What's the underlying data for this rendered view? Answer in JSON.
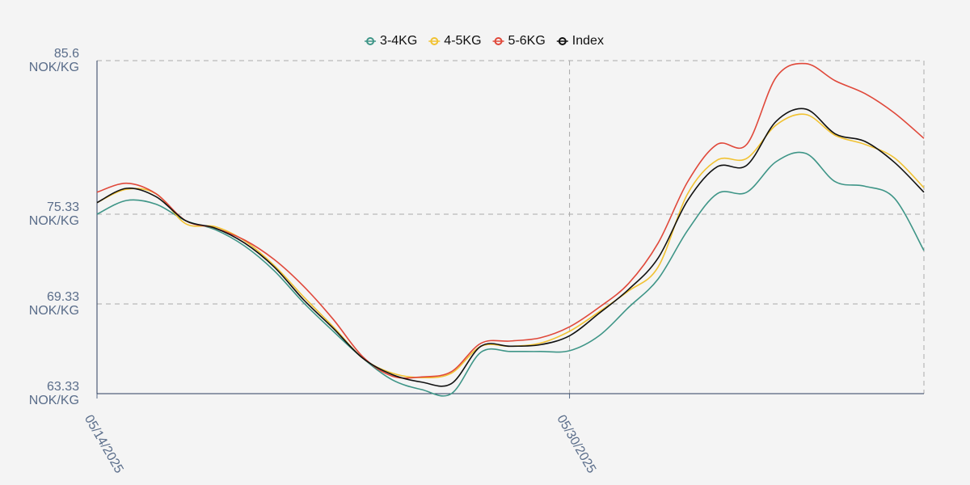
{
  "chart_data": {
    "type": "line",
    "x": [
      "05/14/2025",
      "05/15/2025",
      "05/16/2025",
      "05/17/2025",
      "05/18/2025",
      "05/19/2025",
      "05/20/2025",
      "05/21/2025",
      "05/22/2025",
      "05/23/2025",
      "05/24/2025",
      "05/25/2025",
      "05/26/2025",
      "05/27/2025",
      "05/28/2025",
      "05/29/2025",
      "05/30/2025",
      "05/31/2025",
      "06/01/2025",
      "06/02/2025",
      "06/03/2025",
      "06/04/2025",
      "06/05/2025",
      "06/06/2025",
      "06/07/2025",
      "06/08/2025",
      "06/09/2025",
      "06/10/2025",
      "06/11/2025"
    ],
    "xlim": [
      "05/14/2025",
      "06/11/2025"
    ],
    "xticks": [
      "05/14/2025",
      "05/30/2025"
    ],
    "ylim": [
      63.33,
      85.6
    ],
    "yticks": [
      {
        "value": 63.33,
        "label": "63.33\nNOK/KG"
      },
      {
        "value": 69.33,
        "label": "69.33\nNOK/KG"
      },
      {
        "value": 75.33,
        "label": "75.33\nNOK/KG"
      },
      {
        "value": 85.6,
        "label": "85.6\nNOK/KG"
      }
    ],
    "grid": true,
    "series": [
      {
        "name": "3-4KG",
        "color": "#3e9587",
        "values": [
          75.33,
          76.25,
          76.0,
          74.9,
          74.3,
          73.2,
          71.55,
          69.4,
          67.5,
          65.7,
          64.25,
          63.6,
          63.33,
          66.1,
          66.15,
          66.15,
          66.2,
          67.2,
          69.1,
          71.0,
          74.25,
          76.7,
          76.8,
          78.85,
          79.4,
          77.5,
          77.2,
          76.4,
          72.9
        ]
      },
      {
        "name": "4-5KG",
        "color": "#f1c232",
        "values": [
          76.1,
          77.0,
          76.7,
          74.7,
          74.5,
          73.55,
          71.9,
          69.8,
          67.8,
          65.7,
          64.7,
          64.4,
          64.7,
          66.5,
          66.5,
          66.7,
          67.5,
          68.8,
          70.2,
          71.8,
          76.7,
          78.95,
          79.06,
          81.3,
          82.0,
          80.6,
          80.0,
          79.1,
          77.1
        ]
      },
      {
        "name": "5-6KG",
        "color": "#e0483a",
        "values": [
          76.8,
          77.4,
          76.7,
          74.9,
          74.4,
          73.6,
          72.3,
          70.5,
          68.3,
          65.8,
          64.5,
          64.45,
          64.8,
          66.7,
          66.85,
          67.06,
          67.8,
          69.1,
          70.7,
          73.4,
          77.5,
          80.0,
          80.0,
          84.5,
          85.4,
          84.25,
          83.4,
          82.1,
          80.4
        ]
      },
      {
        "name": "Index",
        "color": "#111111",
        "values": [
          76.1,
          77.06,
          76.5,
          74.9,
          74.4,
          73.4,
          71.8,
          69.6,
          67.7,
          65.7,
          64.6,
          64.1,
          64.0,
          66.5,
          66.5,
          66.6,
          67.2,
          68.7,
          70.3,
          72.4,
          76.25,
          78.5,
          78.6,
          81.55,
          82.36,
          80.7,
          80.2,
          78.8,
          76.8
        ]
      }
    ]
  }
}
